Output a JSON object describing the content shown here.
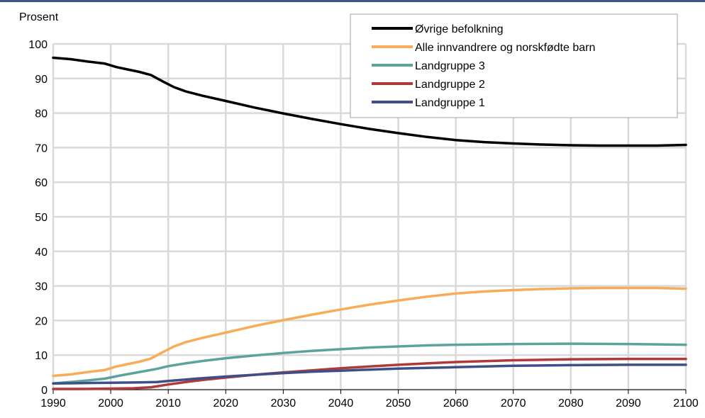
{
  "chart_data": {
    "type": "line",
    "ylabel": "Prosent",
    "xlim": [
      1990,
      2100
    ],
    "ylim": [
      0,
      100
    ],
    "x_ticks": [
      "1990",
      "2000",
      "2010",
      "2020",
      "2030",
      "2040",
      "2050",
      "2060",
      "2070",
      "2080",
      "2090",
      "2100"
    ],
    "y_ticks": [
      "0",
      "10",
      "20",
      "30",
      "40",
      "50",
      "60",
      "70",
      "80",
      "90",
      "100"
    ],
    "grid": true,
    "legend_position": "top-right",
    "series": [
      {
        "name": "Øvrige befolkning",
        "color": "#000000",
        "x": [
          1990,
          1993,
          1996,
          1999,
          2001,
          2003,
          2005,
          2007,
          2009,
          2011,
          2013,
          2016,
          2020,
          2025,
          2030,
          2035,
          2040,
          2045,
          2050,
          2055,
          2060,
          2065,
          2070,
          2075,
          2080,
          2085,
          2090,
          2095,
          2100
        ],
        "y": [
          96,
          95.6,
          94.9,
          94.3,
          93.3,
          92.6,
          91.9,
          91,
          89.2,
          87.5,
          86.3,
          85,
          83.5,
          81.6,
          79.9,
          78.3,
          76.8,
          75.4,
          74.2,
          73.1,
          72.2,
          71.6,
          71.2,
          70.9,
          70.7,
          70.6,
          70.6,
          70.6,
          70.8
        ]
      },
      {
        "name": "Alle innvandrere og norskfødte barn",
        "color": "#f9ac58",
        "x": [
          1990,
          1993,
          1996,
          1999,
          2001,
          2003,
          2005,
          2007,
          2009,
          2011,
          2013,
          2016,
          2020,
          2025,
          2030,
          2035,
          2040,
          2045,
          2050,
          2055,
          2060,
          2065,
          2070,
          2075,
          2080,
          2085,
          2090,
          2095,
          2100
        ],
        "y": [
          4,
          4.4,
          5.1,
          5.7,
          6.7,
          7.4,
          8.1,
          9,
          10.8,
          12.5,
          13.7,
          15,
          16.5,
          18.4,
          20.1,
          21.7,
          23.2,
          24.6,
          25.8,
          26.9,
          27.8,
          28.4,
          28.8,
          29.1,
          29.3,
          29.4,
          29.4,
          29.4,
          29.2
        ]
      },
      {
        "name": "Landgruppe 3",
        "color": "#5ca49b",
        "x": [
          1990,
          1995,
          1999,
          2002,
          2005,
          2008,
          2010,
          2013,
          2016,
          2020,
          2025,
          2030,
          2035,
          2040,
          2045,
          2050,
          2055,
          2060,
          2070,
          2080,
          2090,
          2100
        ],
        "y": [
          1.8,
          2.5,
          3.2,
          4.2,
          5.1,
          6,
          6.8,
          7.6,
          8.3,
          9.1,
          9.9,
          10.6,
          11.2,
          11.7,
          12.2,
          12.5,
          12.8,
          13,
          13.2,
          13.3,
          13.2,
          13
        ]
      },
      {
        "name": "Landgruppe 2",
        "color": "#b03a3a",
        "x": [
          1990,
          1995,
          2000,
          2004,
          2007,
          2010,
          2013,
          2016,
          2020,
          2025,
          2030,
          2035,
          2040,
          2045,
          2050,
          2055,
          2060,
          2070,
          2080,
          2090,
          2100
        ],
        "y": [
          0.2,
          0.2,
          0.3,
          0.4,
          0.7,
          1.5,
          2.2,
          2.8,
          3.5,
          4.3,
          5,
          5.6,
          6.2,
          6.7,
          7.2,
          7.6,
          8,
          8.5,
          8.8,
          8.9,
          8.9
        ]
      },
      {
        "name": "Landgruppe 1",
        "color": "#3e4e86",
        "x": [
          1990,
          1995,
          2000,
          2005,
          2008,
          2010,
          2015,
          2020,
          2025,
          2030,
          2035,
          2040,
          2045,
          2050,
          2055,
          2060,
          2070,
          2080,
          2090,
          2100
        ],
        "y": [
          1.8,
          1.9,
          2,
          2.1,
          2.2,
          2.5,
          3.2,
          3.8,
          4.3,
          4.8,
          5.2,
          5.5,
          5.8,
          6.1,
          6.3,
          6.5,
          6.9,
          7.1,
          7.2,
          7.2
        ]
      }
    ]
  }
}
